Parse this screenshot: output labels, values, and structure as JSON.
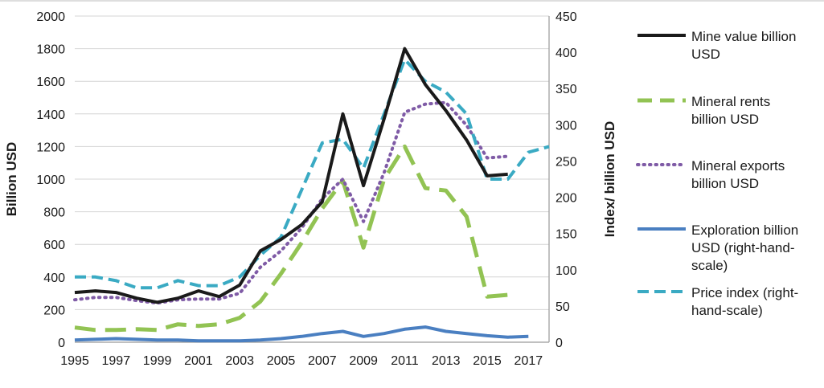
{
  "chart_data": {
    "type": "line",
    "ylabel": "Billion USD",
    "y2label": "Index/ billion USD",
    "ylim": [
      0,
      2000
    ],
    "y2lim": [
      0,
      450
    ],
    "yticks": [
      0,
      200,
      400,
      600,
      800,
      1000,
      1200,
      1400,
      1600,
      1800,
      2000
    ],
    "y2ticks": [
      0,
      50,
      100,
      150,
      200,
      250,
      300,
      350,
      400,
      450
    ],
    "xlim": [
      1995,
      2018
    ],
    "xticks": [
      1995,
      1997,
      1999,
      2001,
      2003,
      2005,
      2007,
      2009,
      2011,
      2013,
      2015,
      2017
    ],
    "ytick_labels": [
      "0",
      "200",
      "400",
      "600",
      "800",
      "1000",
      "1200",
      "1400",
      "1600",
      "1800",
      "2000"
    ],
    "y2tick_labels": [
      "0",
      "50",
      "100",
      "150",
      "200",
      "250",
      "300",
      "350",
      "400",
      "450"
    ],
    "xtick_labels": [
      "1995",
      "1997",
      "1999",
      "2001",
      "2003",
      "2005",
      "2007",
      "2009",
      "2011",
      "2013",
      "2015",
      "2017"
    ],
    "grid": "horizontal",
    "legend": "right",
    "series": [
      {
        "name": "Mine value billion USD",
        "axis": "left",
        "color": "#1a1a1a",
        "style": "solid",
        "x": [
          1995,
          1996,
          1997,
          1998,
          1999,
          2000,
          2001,
          2002,
          2003,
          2004,
          2005,
          2006,
          2007,
          2008,
          2009,
          2010,
          2011,
          2012,
          2013,
          2014,
          2015,
          2016
        ],
        "y": [
          305,
          315,
          305,
          270,
          245,
          270,
          315,
          280,
          350,
          560,
          630,
          720,
          860,
          1400,
          960,
          1370,
          1800,
          1580,
          1420,
          1240,
          1020,
          1030
        ]
      },
      {
        "name": "Mineral rents billion USD",
        "axis": "left",
        "color": "#92c353",
        "style": "dashed",
        "x": [
          1995,
          1996,
          1997,
          1998,
          1999,
          2000,
          2001,
          2002,
          2003,
          2004,
          2005,
          2006,
          2007,
          2008,
          2009,
          2010,
          2011,
          2012,
          2013,
          2014,
          2015,
          2016
        ],
        "y": [
          90,
          75,
          75,
          80,
          75,
          110,
          100,
          110,
          150,
          250,
          420,
          610,
          820,
          990,
          580,
          1000,
          1200,
          945,
          930,
          770,
          280,
          290
        ]
      },
      {
        "name": "Mineral exports billion USD",
        "axis": "left",
        "color": "#7f5ba6",
        "style": "dotted",
        "x": [
          1995,
          1996,
          1997,
          1998,
          1999,
          2000,
          2001,
          2002,
          2003,
          2004,
          2005,
          2006,
          2007,
          2008,
          2009,
          2010,
          2011,
          2012,
          2013,
          2014,
          2015,
          2016
        ],
        "y": [
          260,
          275,
          275,
          255,
          240,
          260,
          265,
          265,
          300,
          460,
          560,
          700,
          880,
          1000,
          740,
          1040,
          1410,
          1460,
          1470,
          1330,
          1130,
          1140
        ]
      },
      {
        "name": "Exploration billion USD (right-hand-scale)",
        "axis": "right",
        "color": "#4a7fc1",
        "style": "solid",
        "x": [
          1995,
          1996,
          1997,
          1998,
          1999,
          2000,
          2001,
          2002,
          2003,
          2004,
          2005,
          2006,
          2007,
          2008,
          2009,
          2010,
          2011,
          2012,
          2013,
          2014,
          2015,
          2016,
          2017
        ],
        "y": [
          3,
          4,
          5,
          4,
          3,
          3,
          2,
          2,
          2,
          3,
          5,
          8,
          12,
          15,
          8,
          12,
          18,
          21,
          15,
          12,
          9,
          7,
          8
        ]
      },
      {
        "name": "Price index (right-hand-scale)",
        "axis": "right",
        "color": "#3aaac3",
        "style": "dashed",
        "x": [
          1995,
          1996,
          1997,
          1998,
          1999,
          2000,
          2001,
          2002,
          2003,
          2004,
          2005,
          2006,
          2007,
          2008,
          2009,
          2010,
          2011,
          2012,
          2013,
          2014,
          2015,
          2016,
          2017,
          2018
        ],
        "y": [
          90,
          90,
          85,
          75,
          75,
          85,
          78,
          78,
          90,
          120,
          145,
          210,
          275,
          280,
          240,
          315,
          390,
          360,
          345,
          315,
          225,
          225,
          262,
          270
        ]
      }
    ]
  }
}
